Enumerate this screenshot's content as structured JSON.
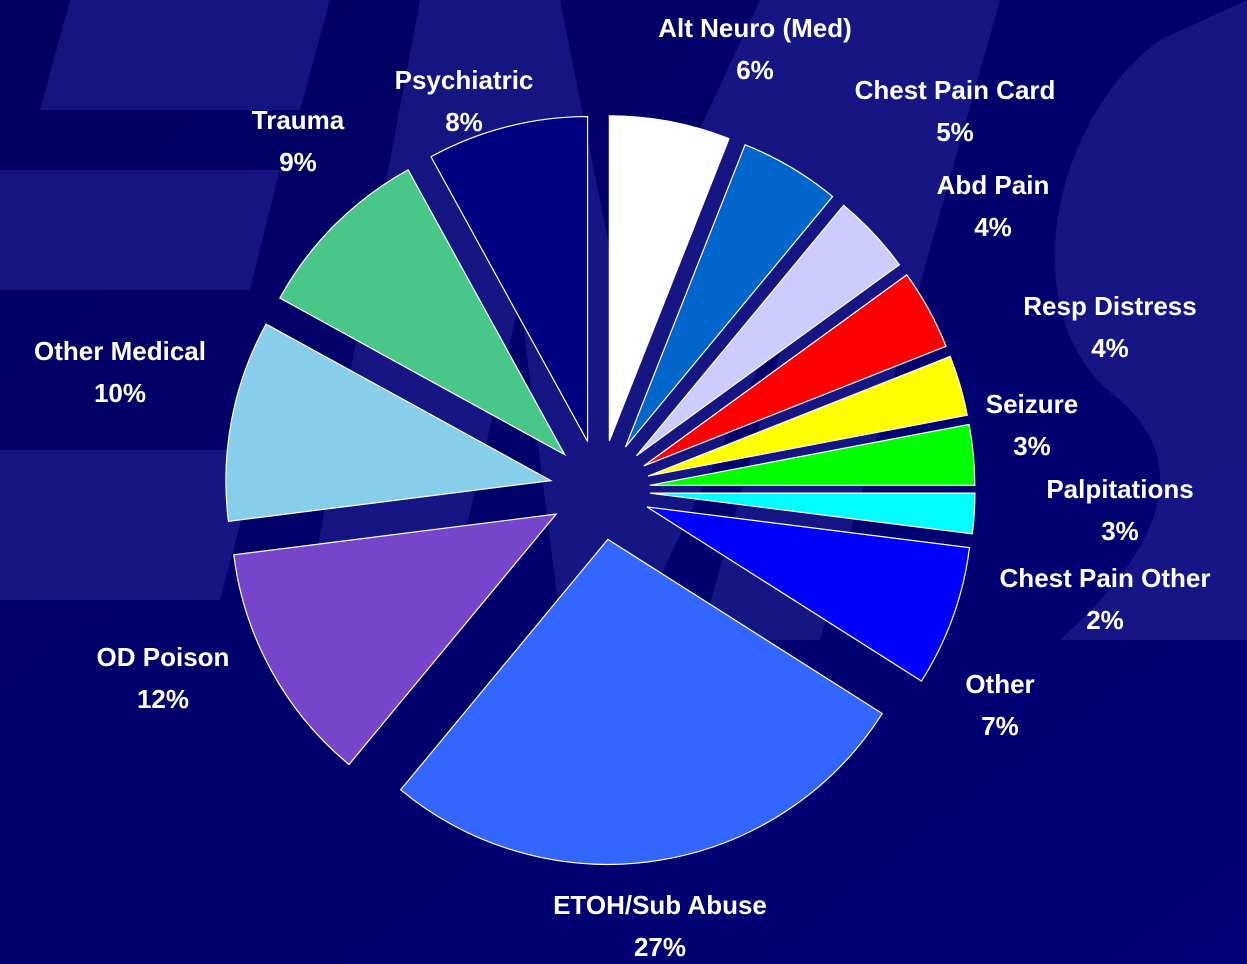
{
  "chart_data": {
    "type": "pie",
    "categories": [
      "Alt Neuro (Med)",
      "Chest Pain Card",
      "Abd Pain",
      "Resp Distress",
      "Seizure",
      "Palpitations",
      "Chest Pain Other",
      "Other",
      "ETOH/Sub Abuse",
      "OD Poison",
      "Other Medical",
      "Trauma",
      "Psychiatric"
    ],
    "values": [
      6,
      5,
      4,
      4,
      3,
      3,
      2,
      7,
      27,
      12,
      10,
      9,
      8
    ],
    "value_labels": [
      "6%",
      "5%",
      "4%",
      "4%",
      "3%",
      "3%",
      "2%",
      "7%",
      "27%",
      "12%",
      "10%",
      "9%",
      "8%"
    ],
    "colors": [
      "#ffffff",
      "#0066cc",
      "#ccccff",
      "#ff0000",
      "#ffff00",
      "#00ff00",
      "#00ffff",
      "#0000ff",
      "#3366ff",
      "#7744cc",
      "#87ceeb",
      "#48c788",
      "#000080"
    ]
  }
}
